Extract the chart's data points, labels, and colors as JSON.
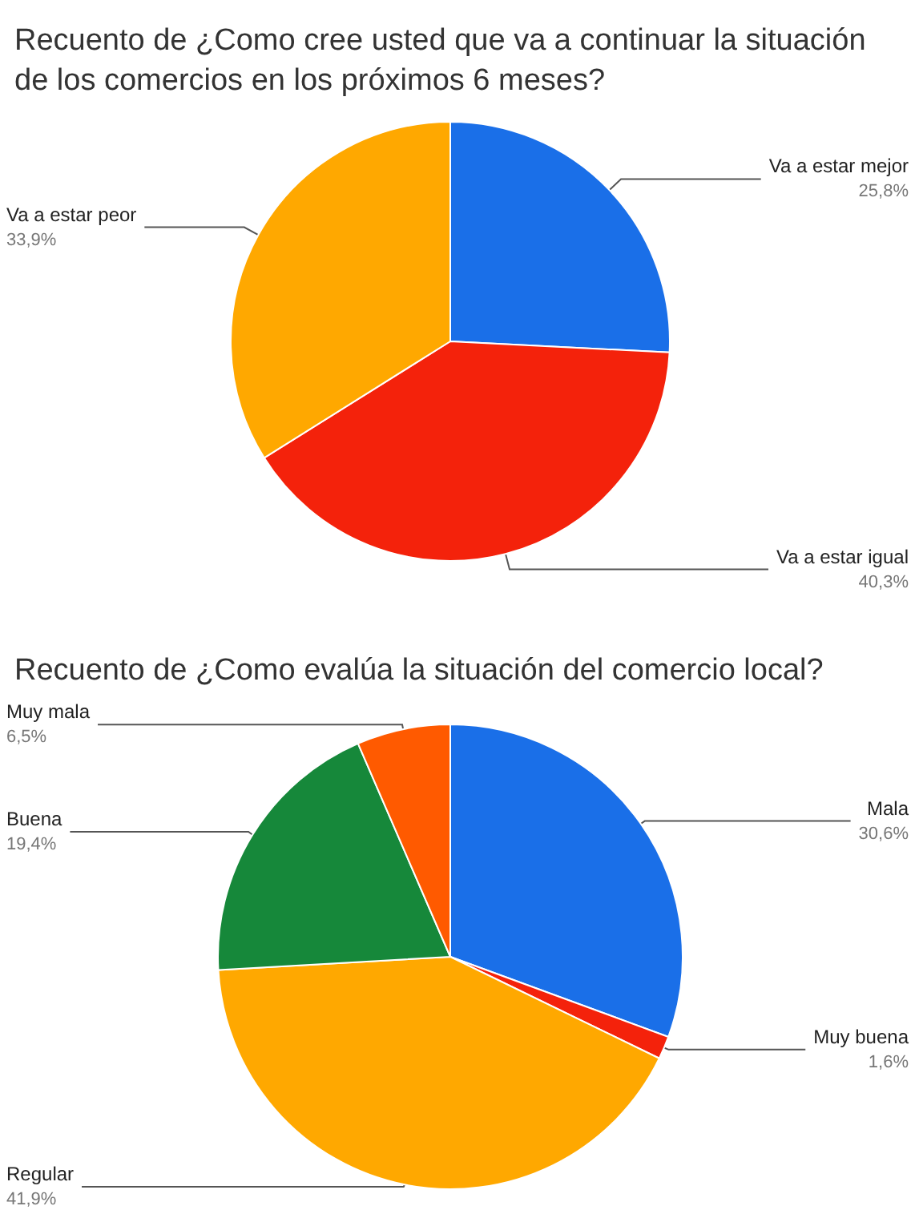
{
  "chart_data": [
    {
      "type": "pie",
      "title": "Recuento de ¿Como cree usted que va a continuar la situación de los comercios en los próximos 6 meses?",
      "categories": [
        "Va a estar mejor",
        "Va a estar igual",
        "Va a estar peor"
      ],
      "values": [
        25.8,
        40.3,
        33.9
      ],
      "value_labels": [
        "25,8%",
        "40,3%",
        "33,9%"
      ],
      "colors": [
        "#1a6fe8",
        "#f4220b",
        "#ffa800"
      ],
      "legend": false
    },
    {
      "type": "pie",
      "title": "Recuento de ¿Como evalúa la situación del comercio local?",
      "categories": [
        "Mala",
        "Muy buena",
        "Regular",
        "Buena",
        "Muy mala"
      ],
      "values": [
        30.6,
        1.6,
        41.9,
        19.4,
        6.5
      ],
      "value_labels": [
        "30,6%",
        "1,6%",
        "41,9%",
        "19,4%",
        "6,5%"
      ],
      "colors": [
        "#1a6fe8",
        "#f4220b",
        "#ffa800",
        "#16883a",
        "#ff5a00"
      ],
      "legend": false
    }
  ]
}
